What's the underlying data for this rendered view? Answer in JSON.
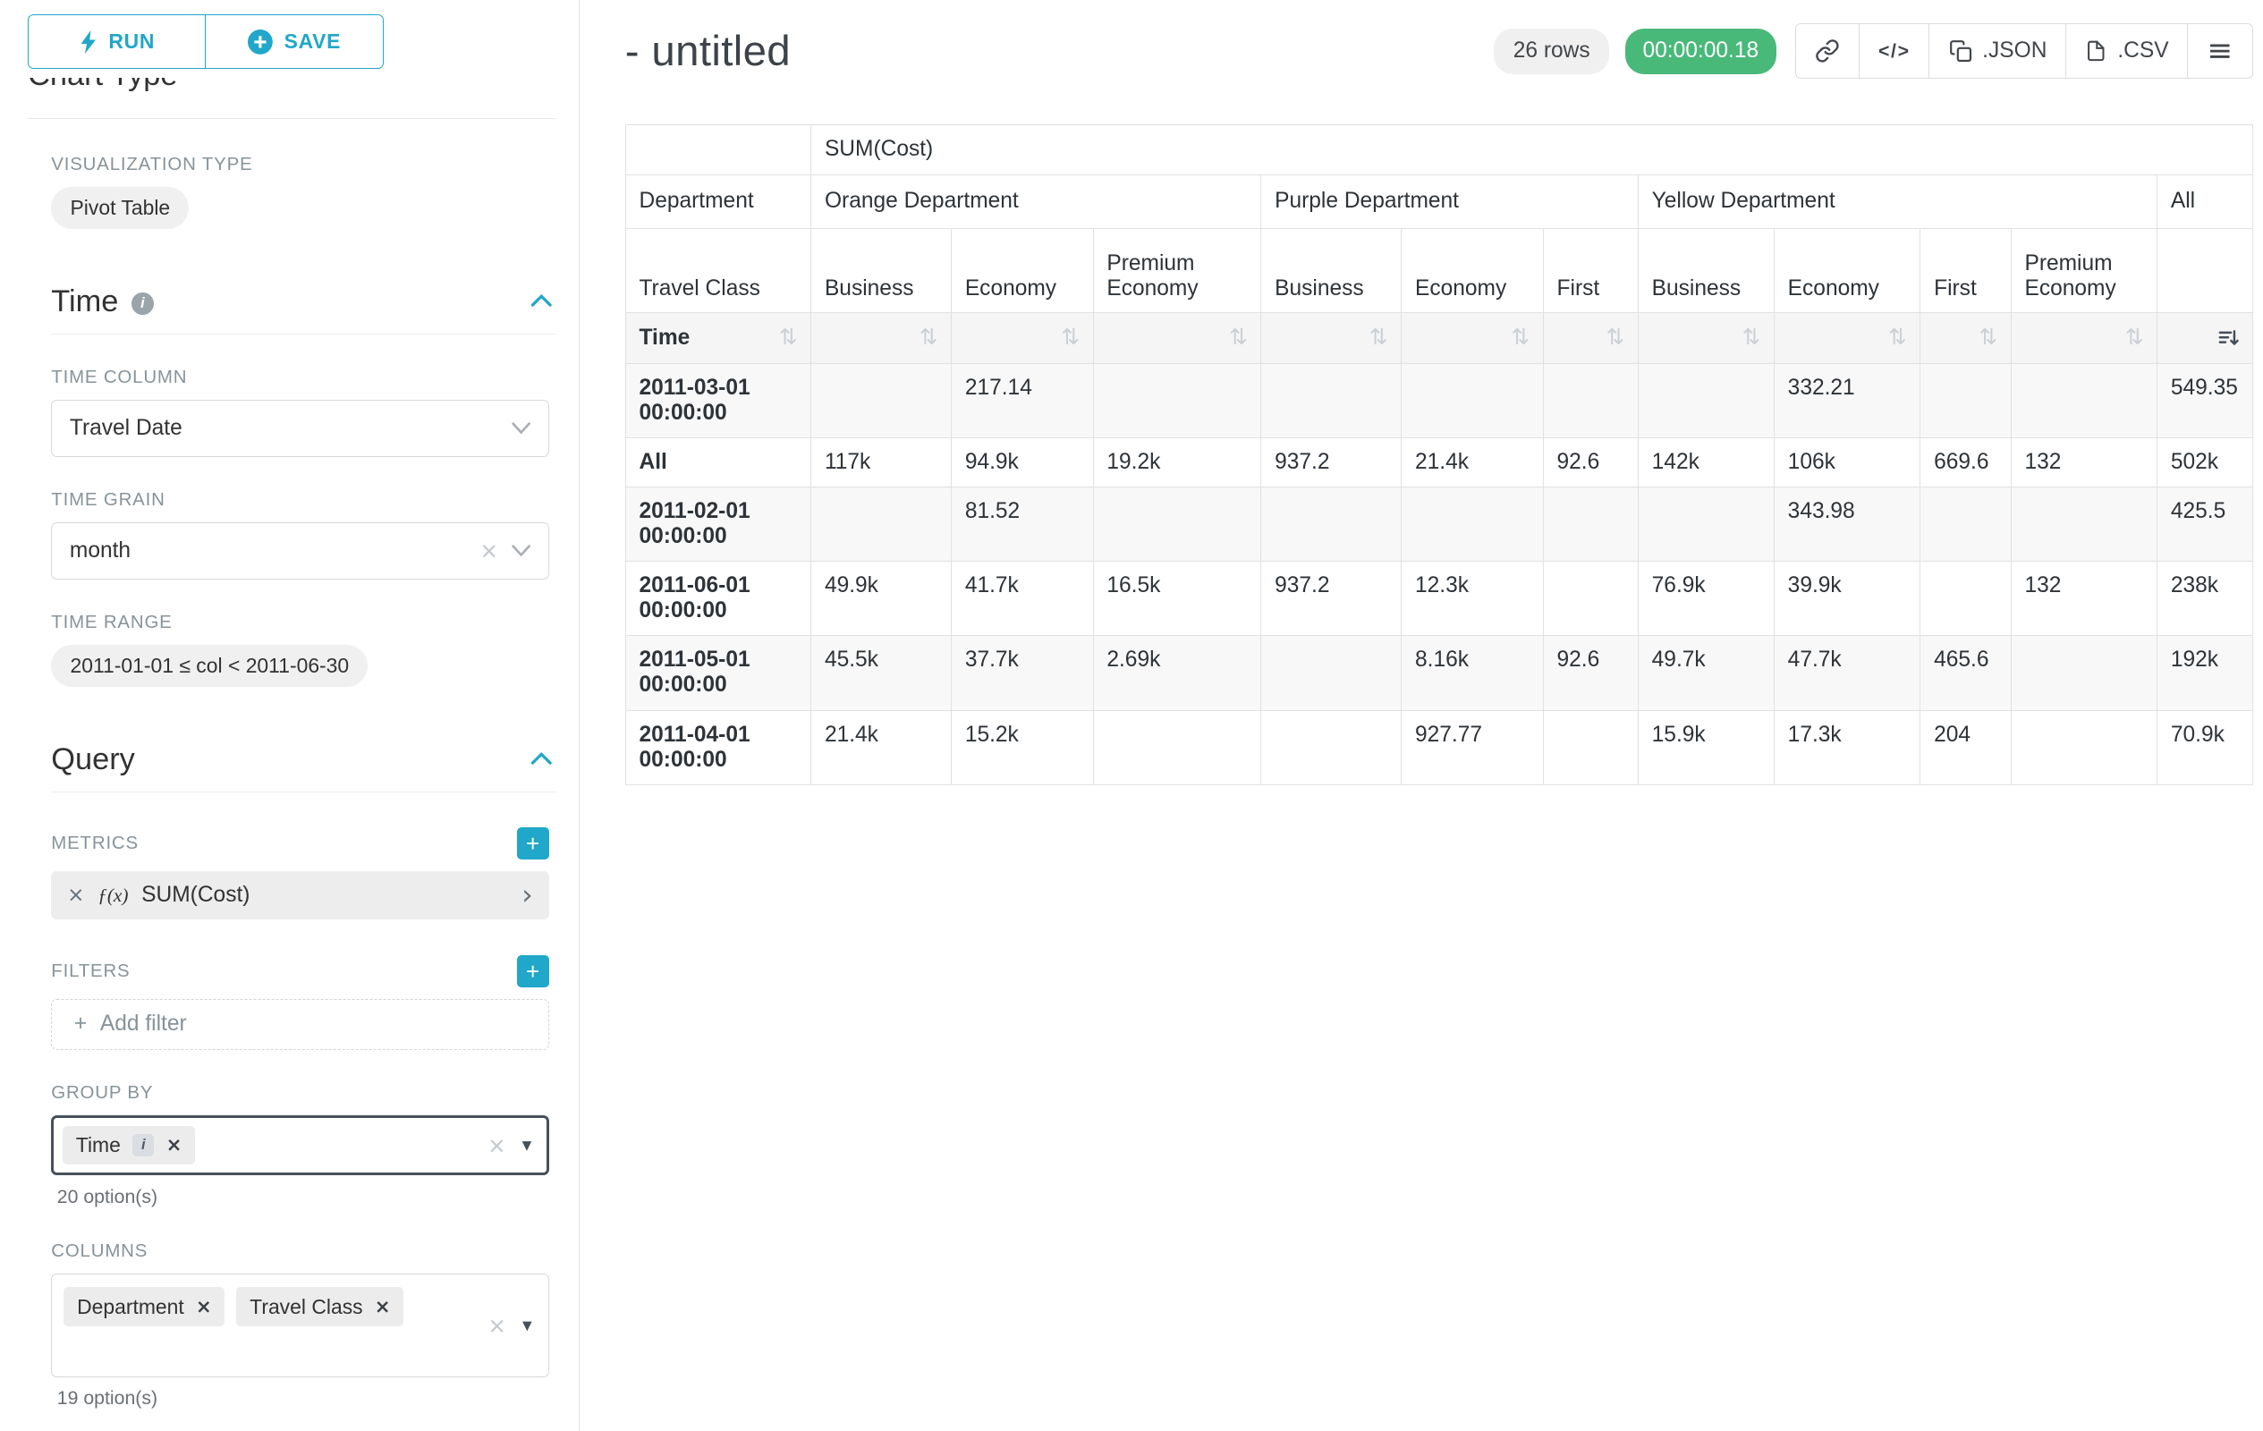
{
  "colors": {
    "accent": "#20a7c9",
    "timer_badge": "#49b97a",
    "focus_border": "#46505a",
    "table_border": "#e1e1e1",
    "chip_bg": "#ededed",
    "label_gray": "#879399"
  },
  "icons": {
    "plus": "+",
    "clear": "×",
    "info": "i",
    "caret_down": "▾",
    "chevron_right": "›",
    "menu": "≡",
    "code": "</>",
    "sort_inactive": "⇅",
    "fx": "ƒ(x)"
  },
  "sidebar": {
    "run_label": "RUN",
    "save_label": "SAVE",
    "chart_type_heading": "Chart Type",
    "visualization_type": {
      "label": "VISUALIZATION TYPE",
      "value": "Pivot Table"
    },
    "time_section": {
      "title": "Time",
      "time_column": {
        "label": "TIME COLUMN",
        "value": "Travel Date"
      },
      "time_grain": {
        "label": "TIME GRAIN",
        "value": "month"
      },
      "time_range": {
        "label": "TIME RANGE",
        "value": "2011-01-01 ≤ col < 2011-06-30"
      }
    },
    "query_section": {
      "title": "Query",
      "metrics": {
        "label": "METRICS",
        "value": "SUM(Cost)"
      },
      "filters": {
        "label": "FILTERS",
        "add_label": "Add filter"
      },
      "group_by": {
        "label": "GROUP BY",
        "chips": [
          "Time"
        ],
        "options_hint": "20 option(s)"
      },
      "columns": {
        "label": "COLUMNS",
        "chips": [
          "Department",
          "Travel Class"
        ],
        "options_hint": "19 option(s)"
      }
    }
  },
  "header": {
    "title": "- untitled",
    "row_count": "26 rows",
    "timer": "00:00:00.18",
    "json_label": ".JSON",
    "csv_label": ".CSV"
  },
  "pivot_table": {
    "metric_header": "SUM(Cost)",
    "col_dimension_label": "Department",
    "row_dimension_label": "Travel Class",
    "time_label": "Time",
    "groups": [
      {
        "name": "Orange Department",
        "cols": [
          "Business",
          "Economy",
          "Premium Economy"
        ]
      },
      {
        "name": "Purple Department",
        "cols": [
          "Business",
          "Economy",
          "First"
        ]
      },
      {
        "name": "Yellow Department",
        "cols": [
          "Business",
          "Economy",
          "First",
          "Premium Economy"
        ]
      },
      {
        "name": "All",
        "cols": [
          ""
        ]
      }
    ],
    "rows": [
      {
        "label": "2011-03-01 00:00:00",
        "values": [
          "",
          "217.14",
          "",
          "",
          "",
          "",
          "",
          "332.21",
          "",
          "",
          "549.35"
        ]
      },
      {
        "label": "All",
        "values": [
          "117k",
          "94.9k",
          "19.2k",
          "937.2",
          "21.4k",
          "92.6",
          "142k",
          "106k",
          "669.6",
          "132",
          "502k"
        ]
      },
      {
        "label": "2011-02-01 00:00:00",
        "values": [
          "",
          "81.52",
          "",
          "",
          "",
          "",
          "",
          "343.98",
          "",
          "",
          "425.5"
        ]
      },
      {
        "label": "2011-06-01 00:00:00",
        "values": [
          "49.9k",
          "41.7k",
          "16.5k",
          "937.2",
          "12.3k",
          "",
          "76.9k",
          "39.9k",
          "",
          "132",
          "238k"
        ]
      },
      {
        "label": "2011-05-01 00:00:00",
        "values": [
          "45.5k",
          "37.7k",
          "2.69k",
          "",
          "8.16k",
          "92.6",
          "49.7k",
          "47.7k",
          "465.6",
          "",
          "192k"
        ]
      },
      {
        "label": "2011-04-01 00:00:00",
        "values": [
          "21.4k",
          "15.2k",
          "",
          "",
          "927.77",
          "",
          "15.9k",
          "17.3k",
          "204",
          "",
          "70.9k"
        ]
      }
    ]
  }
}
